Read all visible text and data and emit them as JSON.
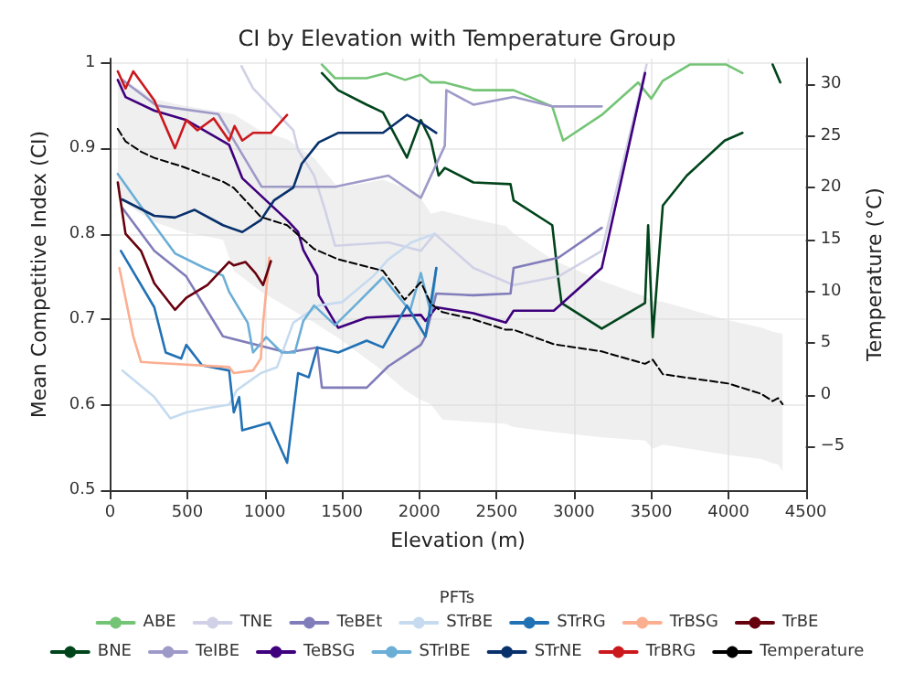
{
  "chart_data": {
    "type": "line",
    "title": "CI by Elevation with Temperature Group",
    "xlabel": "Elevation (m)",
    "ylabel": "Mean Competitive Index (CI)",
    "y2label": "Temperature (°C)",
    "legend_title": "PFTs",
    "legend": "bottom",
    "grid": true,
    "marker": "none",
    "xlim": [
      0,
      4500
    ],
    "xticks": [
      0,
      500,
      1000,
      1500,
      2000,
      2500,
      3000,
      3500,
      4000,
      4500
    ],
    "ylim": [
      0.5,
      1.005
    ],
    "yticks": [
      0.5,
      0.6,
      0.7,
      0.8,
      0.9,
      1.0
    ],
    "y2lim": [
      -9.2,
      32.5
    ],
    "y2ticks": [
      {
        "value": -5,
        "label": "−5"
      },
      0,
      5,
      10,
      15,
      20,
      25,
      30
    ],
    "series": [
      {
        "name": "ABE",
        "color": "#74c476",
        "x": [
          1370,
          1455,
          1660,
          1785,
          1908,
          2010,
          2075,
          2165,
          2350,
          2610,
          2860,
          2930,
          3180,
          3415,
          3500,
          3575,
          3750,
          3985,
          4090
        ],
        "values": [
          0.998,
          0.982,
          0.982,
          0.988,
          0.98,
          0.986,
          0.977,
          0.977,
          0.968,
          0.968,
          0.949,
          0.909,
          0.939,
          0.977,
          0.958,
          0.979,
          0.998,
          0.998,
          0.988
        ]
      },
      {
        "name": "BNE",
        "color": "#00441b",
        "x": [
          1370,
          1475,
          1660,
          1765,
          1920,
          2010,
          2075,
          2125,
          2165,
          2350,
          2590,
          2610,
          2860,
          2900,
          2920,
          3180,
          3460,
          3480,
          3510,
          3575,
          3730,
          3975,
          4090,
          4190,
          4285,
          4335
        ],
        "values": [
          0.988,
          0.968,
          0.951,
          0.942,
          0.889,
          0.933,
          0.909,
          0.868,
          0.877,
          0.86,
          0.858,
          0.839,
          0.81,
          0.746,
          0.719,
          0.689,
          0.719,
          0.81,
          0.679,
          0.833,
          0.868,
          0.909,
          0.918,
          null,
          0.998,
          0.977
        ]
      },
      {
        "name": "TNE",
        "color": "#d0d1e6",
        "x": [
          850,
          925,
          1185,
          1216,
          1320,
          1390,
          1455,
          1800,
          2010,
          2100,
          2350,
          2610,
          2900,
          3180,
          3470
        ],
        "values": [
          0.996,
          0.97,
          0.921,
          0.898,
          0.868,
          0.828,
          0.786,
          0.79,
          0.78,
          0.8,
          0.76,
          0.74,
          0.75,
          0.78,
          0.998
        ]
      },
      {
        "name": "TeIBE",
        "color": "#9e9ac8",
        "x": [
          80,
          300,
          700,
          980,
          1455,
          1800,
          2010,
          2165,
          2175,
          2350,
          2610,
          2860,
          3180
        ],
        "values": [
          0.98,
          0.95,
          0.94,
          0.855,
          0.855,
          0.868,
          0.842,
          0.903,
          0.968,
          0.951,
          0.96,
          0.949,
          0.949
        ]
      },
      {
        "name": "TeBEt",
        "color": "#807dba",
        "x": [
          80,
          286,
          493,
          730,
          1145,
          1340,
          1370,
          1660,
          1800,
          2010,
          2040,
          2110,
          2350,
          2590,
          2610,
          2900,
          3180
        ],
        "values": [
          0.83,
          0.78,
          0.75,
          0.68,
          0.661,
          0.667,
          0.62,
          0.62,
          0.645,
          0.67,
          0.68,
          0.73,
          0.728,
          0.73,
          0.76,
          0.772,
          0.807
        ]
      },
      {
        "name": "TeBSG",
        "color": "#3f007d",
        "x": [
          50,
          100,
          286,
          493,
          770,
          855,
          1145,
          1216,
          1250,
          1340,
          1350,
          1475,
          1660,
          2010,
          2040,
          2110,
          2350,
          2560,
          2610,
          2870,
          3180,
          3460
        ],
        "values": [
          0.98,
          0.96,
          0.944,
          0.933,
          0.904,
          0.865,
          0.816,
          0.802,
          0.781,
          0.751,
          0.728,
          0.69,
          0.702,
          0.705,
          0.698,
          0.714,
          0.707,
          0.696,
          0.71,
          0.71,
          0.76,
          0.988
        ]
      },
      {
        "name": "STrBE",
        "color": "#c6dbef",
        "x": [
          80,
          286,
          390,
          493,
          630,
          770,
          820,
          975,
          1080,
          1185,
          1350,
          1500,
          1700,
          1800,
          1950,
          2100
        ],
        "values": [
          0.64,
          0.609,
          0.584,
          0.591,
          0.596,
          0.6,
          0.617,
          0.637,
          0.644,
          0.696,
          0.716,
          0.72,
          0.75,
          0.77,
          0.79,
          0.8
        ]
      },
      {
        "name": "STrIBE",
        "color": "#6baed6",
        "x": [
          50,
          286,
          420,
          610,
          730,
          770,
          890,
          925,
          1010,
          1110,
          1195,
          1250,
          1320,
          1455,
          1600,
          1765,
          1940,
          2010,
          2075,
          2110
        ],
        "values": [
          0.87,
          0.81,
          0.777,
          0.76,
          0.751,
          0.732,
          0.696,
          0.661,
          0.679,
          0.661,
          0.661,
          0.698,
          0.716,
          0.693,
          0.719,
          0.749,
          0.71,
          0.754,
          0.707,
          0.76
        ]
      },
      {
        "name": "STrRG",
        "color": "#2171b5",
        "x": [
          70,
          286,
          360,
          460,
          493,
          595,
          770,
          800,
          835,
          855,
          1030,
          1145,
          1216,
          1285,
          1340,
          1475,
          1660,
          1765,
          1920,
          2040,
          2110
        ],
        "values": [
          0.78,
          0.714,
          0.661,
          0.654,
          0.67,
          0.646,
          0.64,
          0.591,
          0.609,
          0.57,
          0.579,
          0.532,
          0.637,
          0.632,
          0.667,
          0.661,
          0.675,
          0.667,
          0.716,
          0.68,
          0.76
        ]
      },
      {
        "name": "STrNE",
        "color": "#08306b",
        "x": [
          80,
          286,
          420,
          545,
          730,
          855,
          975,
          1060,
          1185,
          1240,
          1350,
          1475,
          1765,
          1920,
          2010,
          2110
        ],
        "values": [
          0.84,
          0.821,
          0.819,
          0.828,
          0.81,
          0.802,
          0.816,
          0.839,
          0.854,
          0.882,
          0.907,
          0.918,
          0.918,
          0.939,
          0.93,
          0.918
        ]
      },
      {
        "name": "TrBSG",
        "color": "#fcae91",
        "x": [
          60,
          150,
          200,
          286,
          770,
          800,
          925,
          975,
          990,
          1030
        ],
        "values": [
          0.76,
          0.68,
          0.65,
          0.649,
          0.644,
          0.637,
          0.64,
          0.654,
          0.696,
          0.772
        ]
      },
      {
        "name": "TrBRG",
        "color": "#cb181d",
        "x": [
          50,
          100,
          150,
          286,
          420,
          493,
          565,
          670,
          770,
          805,
          855,
          925,
          1040,
          1145
        ],
        "values": [
          0.99,
          0.97,
          0.99,
          0.956,
          0.9,
          0.933,
          0.921,
          0.935,
          0.909,
          0.926,
          0.909,
          0.918,
          0.918,
          0.939
        ]
      },
      {
        "name": "TrBE",
        "color": "#67000d",
        "x": [
          50,
          100,
          200,
          286,
          420,
          493,
          630,
          770,
          800,
          875,
          940,
          990,
          1040
        ],
        "values": [
          0.86,
          0.8,
          0.78,
          0.742,
          0.711,
          0.725,
          0.74,
          0.767,
          0.763,
          0.767,
          0.754,
          0.74,
          0.768
        ]
      },
      {
        "name": "Temperature",
        "color": "#000000",
        "axis": "y2",
        "line_style": "dashed",
        "x": [
          50,
          100,
          200,
          286,
          460,
          730,
          800,
          975,
          1145,
          1320,
          1475,
          1765,
          1905,
          2010,
          2075,
          2150,
          2350,
          2560,
          2610,
          2870,
          3180,
          3460,
          3510,
          3575,
          4000,
          4212,
          4285,
          4320,
          4350
        ],
        "values": [
          25.7,
          24.5,
          23.5,
          22.9,
          22.1,
          20.6,
          20.0,
          17.2,
          16.4,
          14.1,
          13.1,
          12.0,
          9.2,
          10.9,
          8.8,
          8.0,
          7.3,
          6.3,
          6.3,
          4.9,
          4.2,
          3.0,
          3.4,
          2.0,
          1.1,
          0.1,
          -0.6,
          -0.3,
          -0.9
        ],
        "upper": [
          30.4,
          30,
          29.5,
          28.6,
          28,
          27.3,
          27.1,
          25.5,
          24.7,
          22.9,
          20.0,
          20.8,
          20.0,
          19,
          17.5,
          17.8,
          17,
          16.3,
          15.6,
          13,
          11,
          9.5,
          9.1,
          9,
          7.2,
          6.5,
          6.1,
          6,
          5.9
        ],
        "lower": [
          19,
          18.5,
          17.5,
          16.7,
          15.8,
          15,
          12,
          10,
          8.5,
          7,
          5.5,
          2.3,
          0.5,
          -0.5,
          -0.9,
          -2.4,
          -2.6,
          -2.8,
          -3.1,
          -3.6,
          -4.1,
          -4.4,
          -5.2,
          -4.8,
          -5.8,
          -6.2,
          -6.6,
          -6.7,
          -7.4
        ]
      }
    ]
  }
}
